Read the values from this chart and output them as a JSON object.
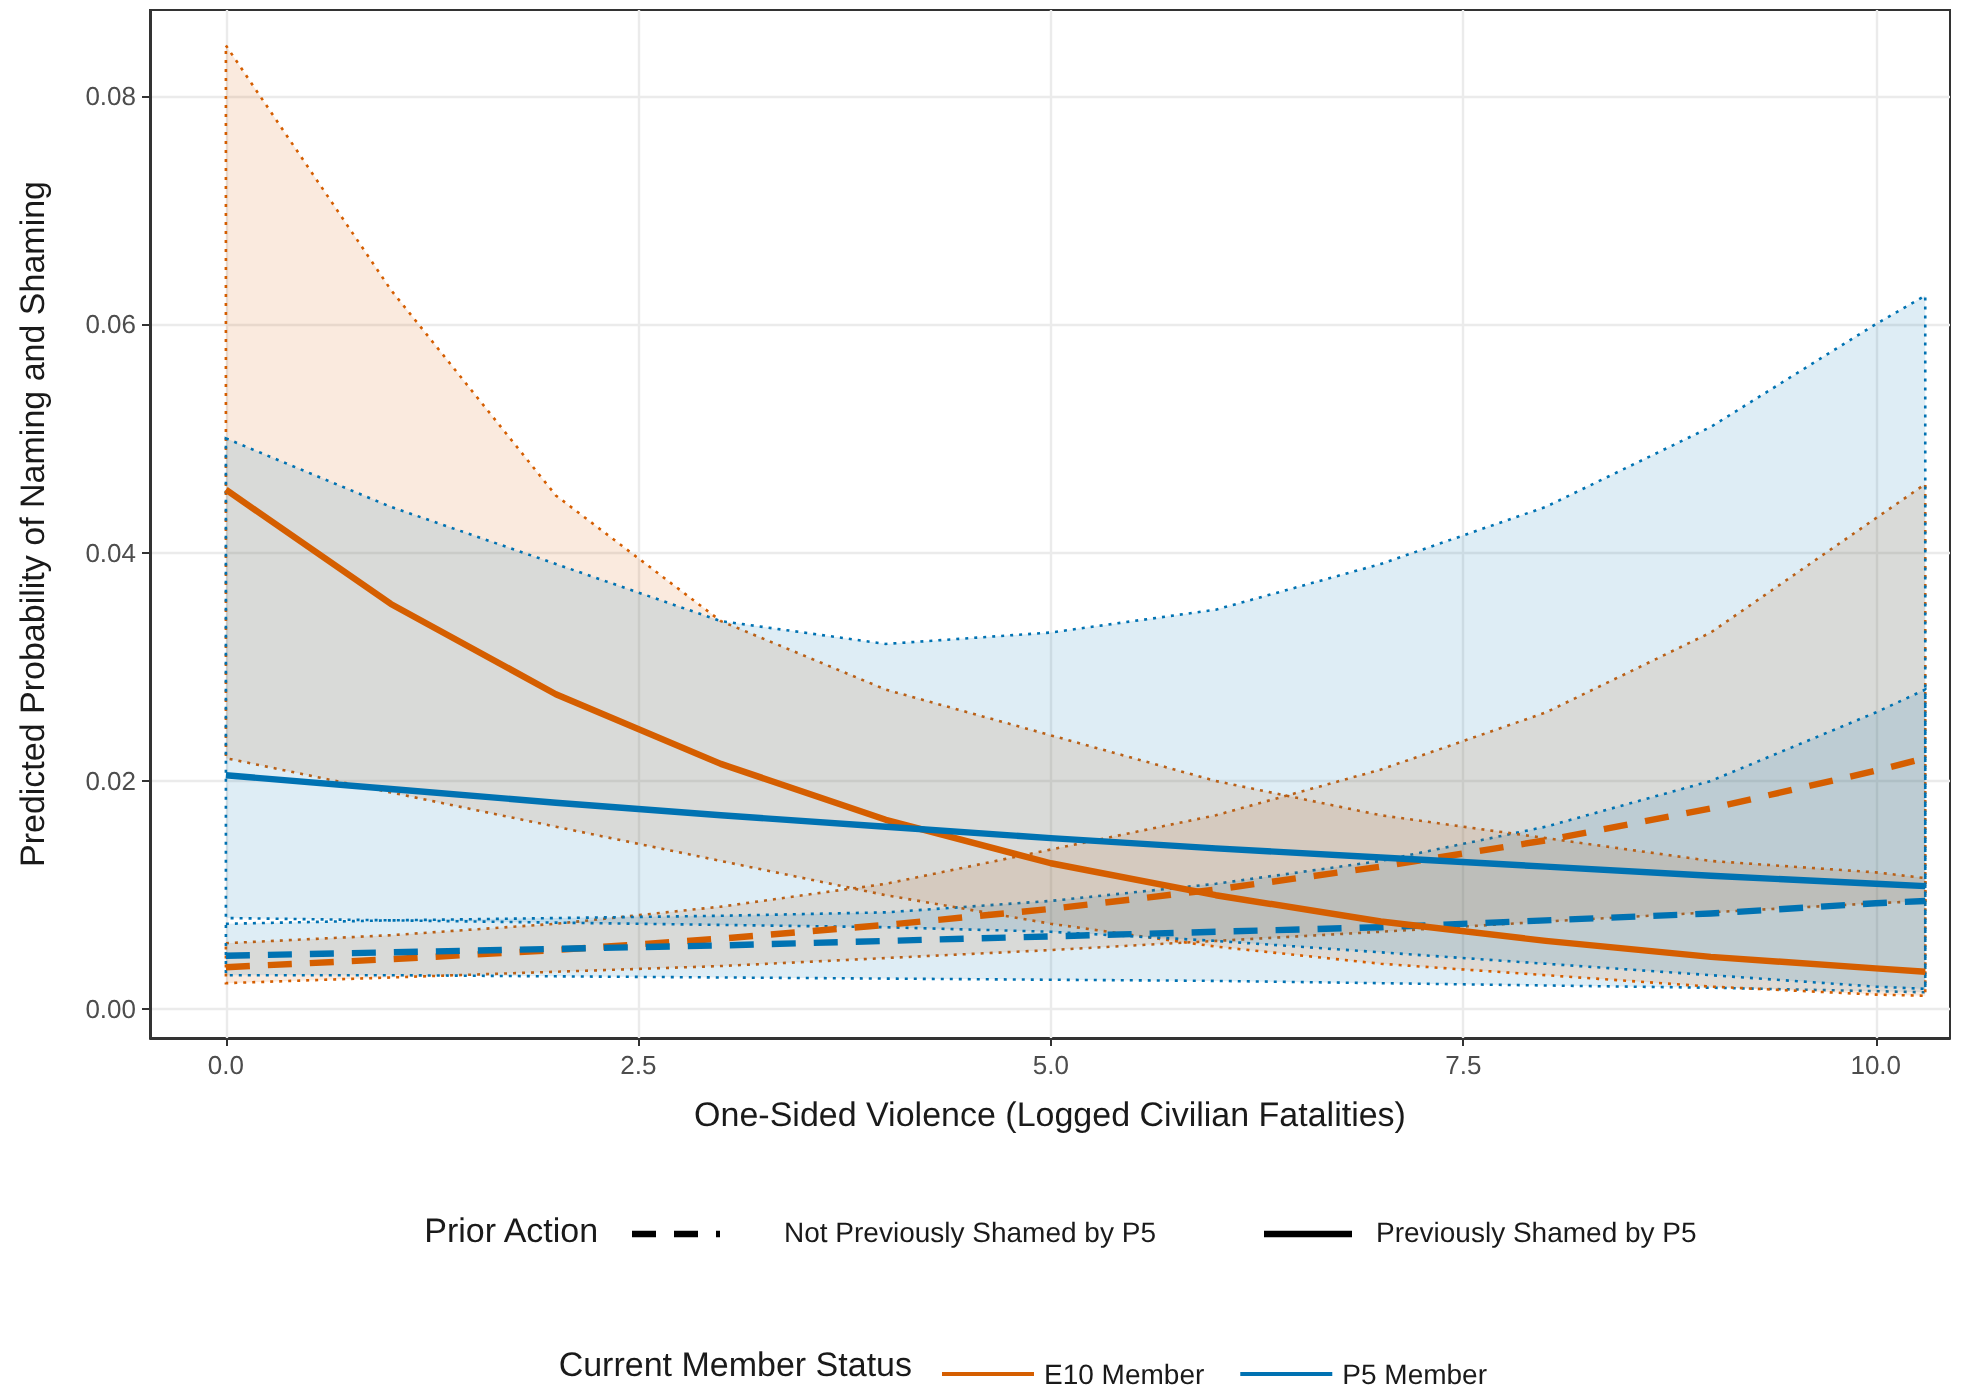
{
  "chart_data": {
    "type": "line",
    "xlabel": "One-Sided Violence (Logged Civilian Fatalities)",
    "ylabel": "Predicted Probability of Naming and Shaming",
    "legend_title": "Current Member Status",
    "annotations": [
      "Prior Action",
      "Not Previously Shamed by P5",
      "Previously Shamed by P5"
    ],
    "x": [
      0,
      1,
      2,
      3,
      4,
      5,
      6,
      7,
      8,
      9,
      10,
      10.3
    ],
    "series": [
      {
        "color": "#d55e00",
        "line_style": "dashed",
        "values": [
          0.0037,
          0.0044,
          0.0052,
          0.0062,
          0.0074,
          0.0088,
          0.0105,
          0.0125,
          0.0148,
          0.0176,
          0.0209,
          0.022
        ],
        "lower": [
          0.0023,
          0.0028,
          0.0033,
          0.0038,
          0.0045,
          0.0052,
          0.006,
          0.0068,
          0.0077,
          0.0085,
          0.0093,
          0.0095
        ],
        "upper": [
          0.0058,
          0.0065,
          0.0075,
          0.009,
          0.011,
          0.014,
          0.017,
          0.021,
          0.026,
          0.033,
          0.043,
          0.046
        ]
      },
      {
        "color": "#0072b2",
        "line_style": "dashed",
        "values": [
          0.0047,
          0.005,
          0.0053,
          0.0056,
          0.006,
          0.0064,
          0.0068,
          0.0072,
          0.0078,
          0.0084,
          0.0093,
          0.0095
        ],
        "lower": [
          0.003,
          0.003,
          0.0029,
          0.0028,
          0.0027,
          0.0026,
          0.0025,
          0.0023,
          0.0021,
          0.0019,
          0.0016,
          0.0015
        ],
        "upper": [
          0.0075,
          0.0078,
          0.008,
          0.0082,
          0.0085,
          0.0095,
          0.011,
          0.013,
          0.016,
          0.02,
          0.026,
          0.028
        ]
      },
      {
        "name": "E10 Member",
        "color": "#d55e00",
        "line_style": "solid",
        "values": [
          0.0455,
          0.0355,
          0.0276,
          0.0215,
          0.0166,
          0.0128,
          0.01,
          0.0077,
          0.006,
          0.0046,
          0.0036,
          0.0033
        ],
        "lower": [
          0.022,
          0.019,
          0.016,
          0.013,
          0.01,
          0.0075,
          0.0055,
          0.004,
          0.003,
          0.002,
          0.0013,
          0.0012
        ],
        "upper": [
          0.0844,
          0.063,
          0.045,
          0.034,
          0.028,
          0.024,
          0.02,
          0.017,
          0.015,
          0.013,
          0.012,
          0.0115
        ]
      },
      {
        "name": "P5 Member",
        "color": "#0072b2",
        "line_style": "solid",
        "values": [
          0.0205,
          0.0193,
          0.0181,
          0.017,
          0.016,
          0.015,
          0.0141,
          0.0133,
          0.0125,
          0.0117,
          0.011,
          0.0108
        ],
        "lower": [
          0.008,
          0.0078,
          0.0076,
          0.0074,
          0.0072,
          0.0068,
          0.006,
          0.005,
          0.004,
          0.003,
          0.002,
          0.0018
        ],
        "upper": [
          0.05,
          0.044,
          0.039,
          0.034,
          0.032,
          0.033,
          0.035,
          0.039,
          0.044,
          0.051,
          0.06,
          0.0625
        ]
      }
    ],
    "xlim": [
      -0.46,
      10.45
    ],
    "xticks": [
      {
        "value": 0,
        "label": "0.0"
      },
      2.5,
      {
        "value": 5,
        "label": "5.0"
      },
      7.5,
      {
        "value": 10,
        "label": "10.0"
      }
    ],
    "ylim": [
      -0.0025,
      0.0875
    ],
    "yticks": [
      {
        "value": 0,
        "label": "0.00"
      },
      0.02,
      0.04,
      0.06,
      0.08
    ],
    "grid": true,
    "legend": "bottom",
    "marker": "none"
  }
}
